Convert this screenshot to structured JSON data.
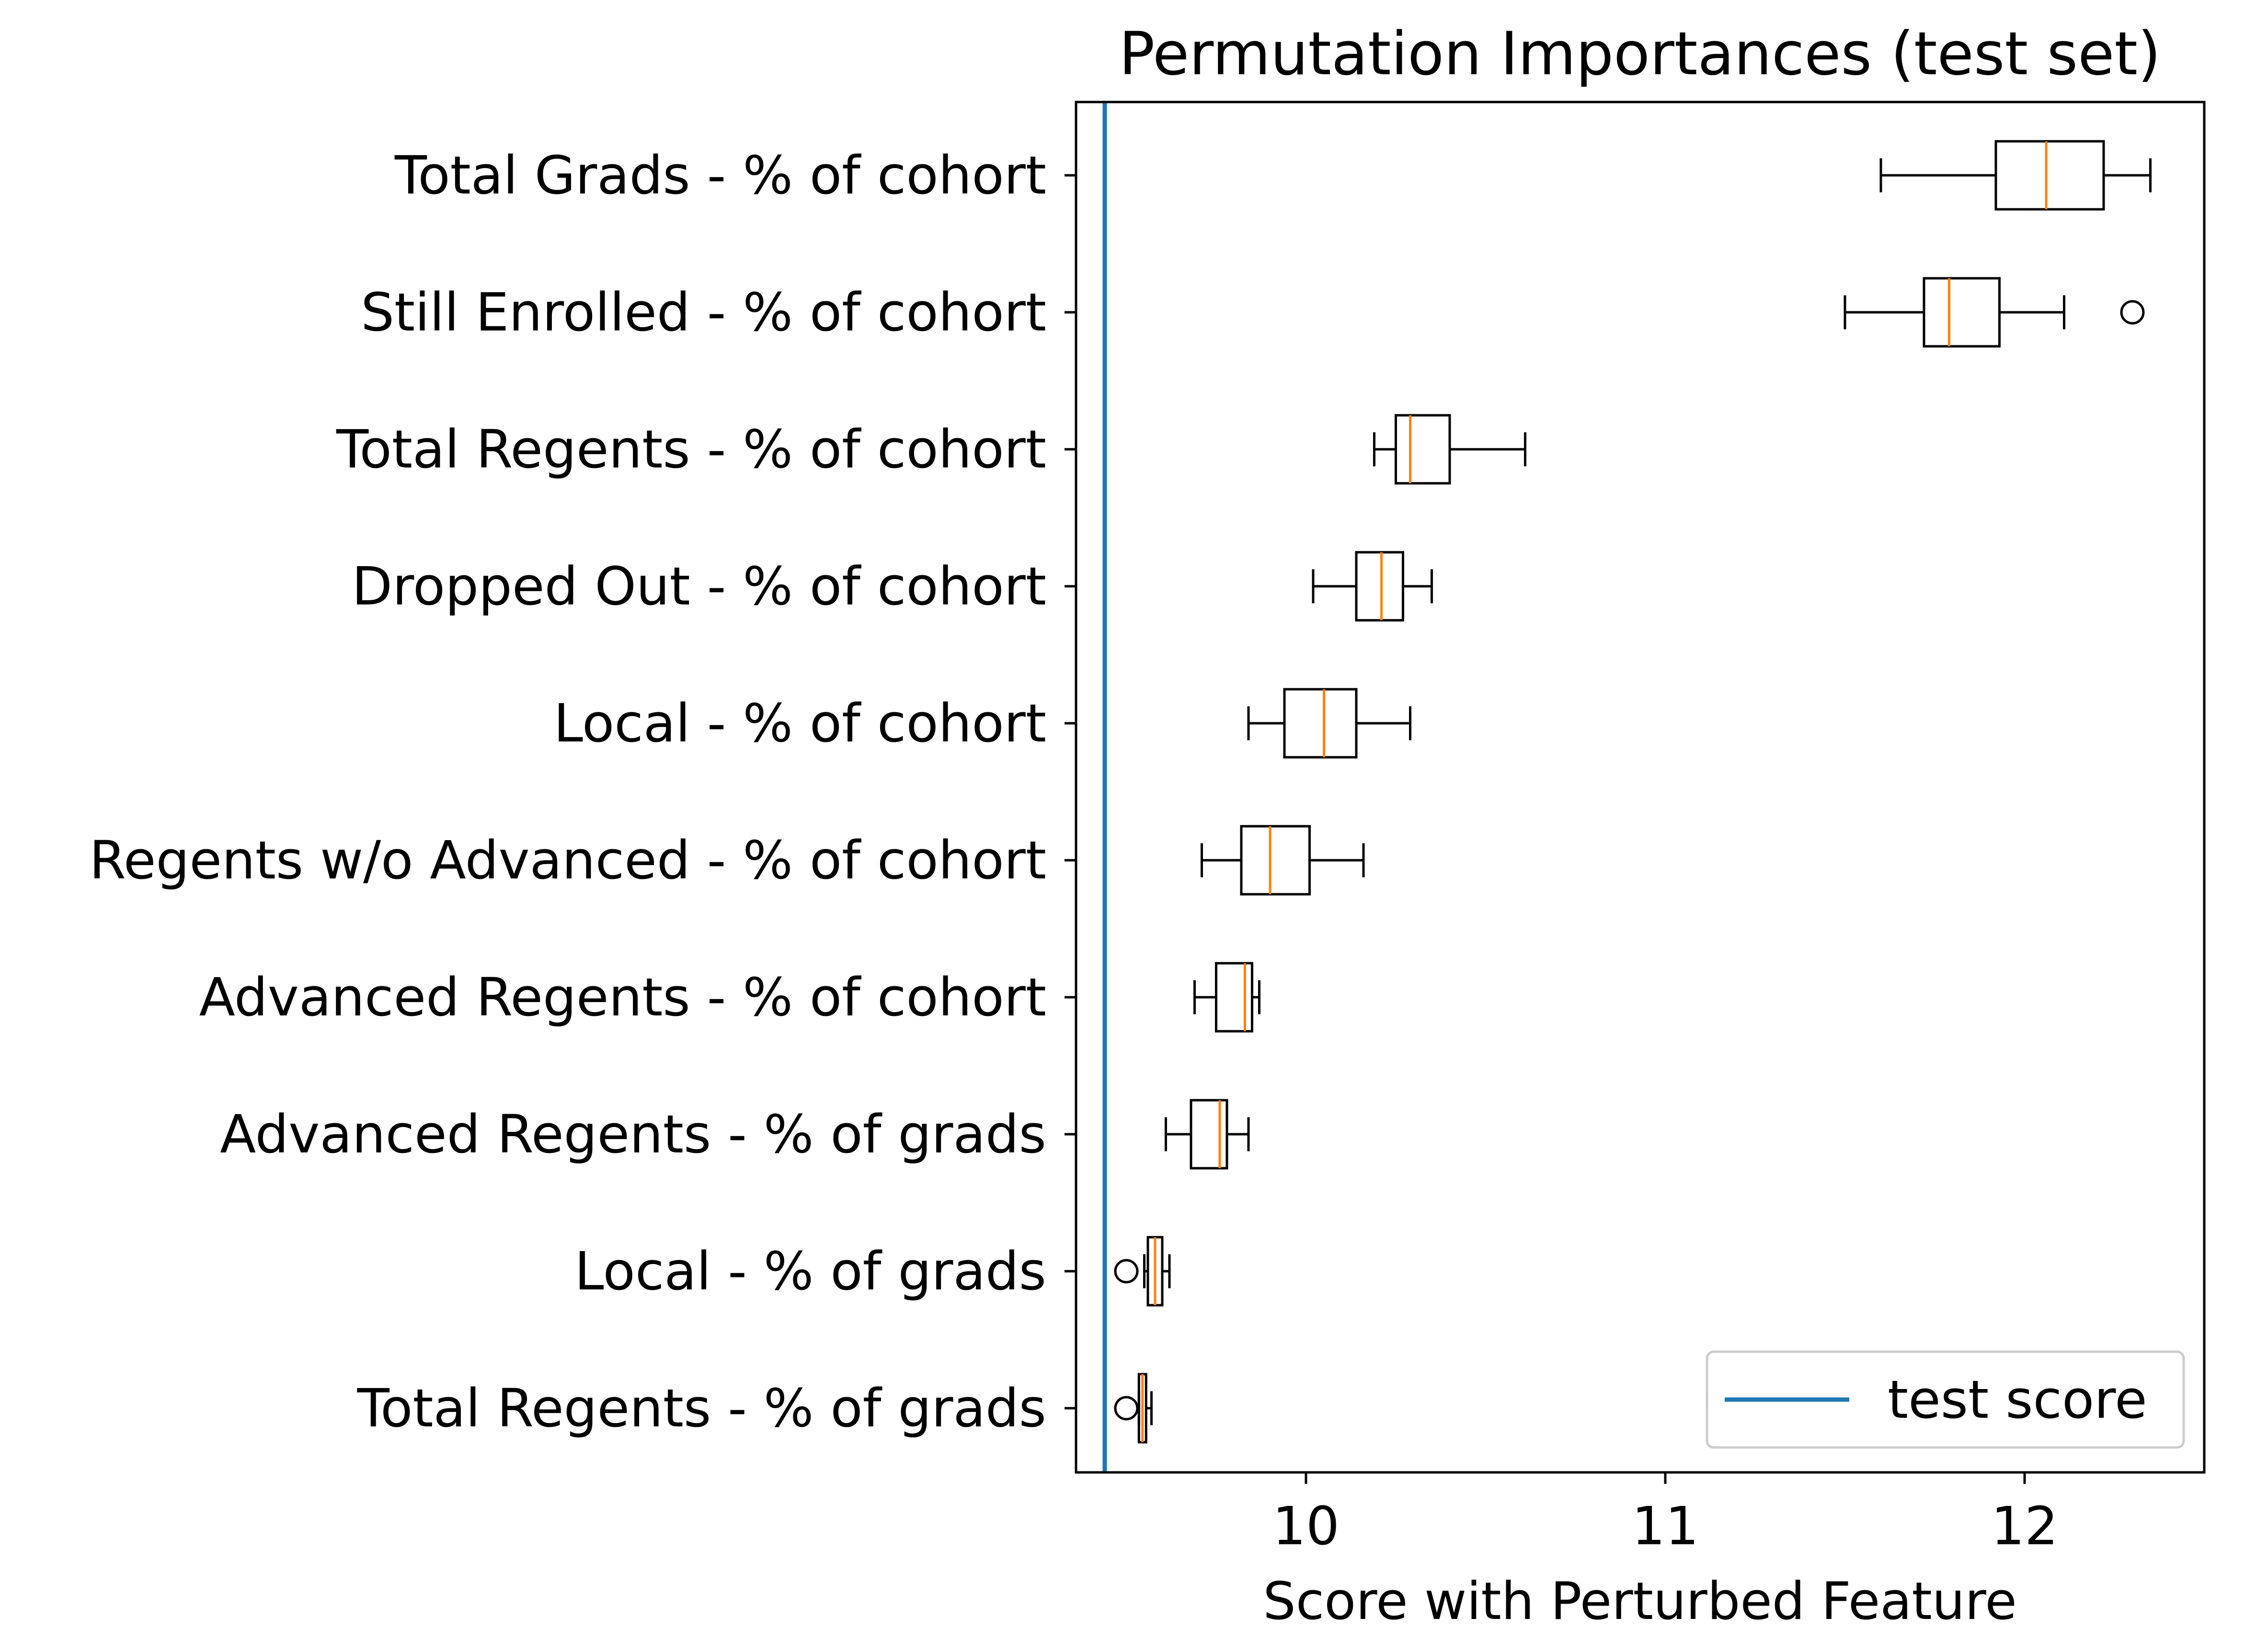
{
  "chart_data": {
    "type": "boxplot",
    "orientation": "horizontal",
    "title": "Permutation Importances (test set)",
    "xlabel": "Score with Perturbed Feature",
    "ylabel": "",
    "xlim": [
      9.36,
      12.5
    ],
    "xticks": [
      10,
      11,
      12
    ],
    "grid": false,
    "legend": {
      "position": "lower-right",
      "entries": [
        "test score"
      ]
    },
    "reference_line": {
      "label": "test score",
      "value": 9.44,
      "color": "#1f77b4"
    },
    "colors": {
      "box": "#000000",
      "median": "#ff7f0e",
      "reference": "#1f77b4"
    },
    "series": [
      {
        "name": "Total Grads - % of cohort",
        "whisker_low": 11.6,
        "q1": 11.92,
        "median": 12.06,
        "q3": 12.22,
        "whisker_high": 12.35,
        "outliers": []
      },
      {
        "name": "Still Enrolled - % of cohort",
        "whisker_low": 11.5,
        "q1": 11.72,
        "median": 11.79,
        "q3": 11.93,
        "whisker_high": 12.11,
        "outliers": [
          12.3
        ]
      },
      {
        "name": "Total Regents - % of cohort",
        "whisker_low": 10.19,
        "q1": 10.25,
        "median": 10.29,
        "q3": 10.4,
        "whisker_high": 10.61,
        "outliers": []
      },
      {
        "name": "Dropped Out - % of cohort",
        "whisker_low": 10.02,
        "q1": 10.14,
        "median": 10.21,
        "q3": 10.27,
        "whisker_high": 10.35,
        "outliers": []
      },
      {
        "name": "Local - % of cohort",
        "whisker_low": 9.84,
        "q1": 9.94,
        "median": 10.05,
        "q3": 10.14,
        "whisker_high": 10.29,
        "outliers": []
      },
      {
        "name": "Regents w/o Advanced - % of cohort",
        "whisker_low": 9.71,
        "q1": 9.82,
        "median": 9.9,
        "q3": 10.01,
        "whisker_high": 10.16,
        "outliers": []
      },
      {
        "name": "Advanced Regents - % of cohort",
        "whisker_low": 9.69,
        "q1": 9.75,
        "median": 9.83,
        "q3": 9.85,
        "whisker_high": 9.87,
        "outliers": []
      },
      {
        "name": "Advanced Regents - % of grads",
        "whisker_low": 9.61,
        "q1": 9.68,
        "median": 9.76,
        "q3": 9.78,
        "whisker_high": 9.84,
        "outliers": []
      },
      {
        "name": "Local - % of grads",
        "whisker_low": 9.55,
        "q1": 9.56,
        "median": 9.58,
        "q3": 9.6,
        "whisker_high": 9.62,
        "outliers": [
          9.5
        ]
      },
      {
        "name": "Total Regents - % of grads",
        "whisker_low": 9.535,
        "q1": 9.535,
        "median": 9.545,
        "q3": 9.555,
        "whisker_high": 9.57,
        "outliers": [
          9.5
        ]
      }
    ]
  }
}
